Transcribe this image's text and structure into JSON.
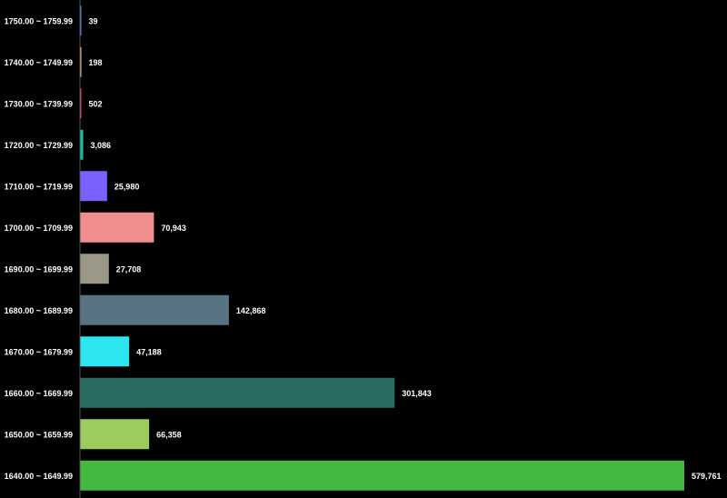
{
  "chart_data": {
    "type": "bar",
    "orientation": "horizontal",
    "categories": [
      "1750.00 ~ 1759.99",
      "1740.00 ~ 1749.99",
      "1730.00 ~ 1739.99",
      "1720.00 ~ 1729.99",
      "1710.00 ~ 1719.99",
      "1700.00 ~ 1709.99",
      "1690.00 ~ 1699.99",
      "1680.00 ~ 1689.99",
      "1670.00 ~ 1679.99",
      "1660.00 ~ 1669.99",
      "1650.00 ~ 1659.99",
      "1640.00 ~ 1649.99"
    ],
    "values": [
      39,
      198,
      502,
      3086,
      25980,
      70943,
      27708,
      142868,
      47188,
      301843,
      66358,
      579761
    ],
    "value_labels": [
      "39",
      "198",
      "502",
      "3,086",
      "25,980",
      "70,943",
      "27,708",
      "142,868",
      "47,188",
      "301,843",
      "66,358",
      "579,761"
    ],
    "colors": [
      "#4a90e2",
      "#f5c26b",
      "#e0526b",
      "#1abc9c",
      "#7b61ff",
      "#f08e8e",
      "#9b9888",
      "#587382",
      "#2de6f0",
      "#2a6b62",
      "#9ccc5e",
      "#45b842"
    ],
    "title": "",
    "xlabel": "",
    "ylabel": "",
    "xlim": [
      0,
      579761
    ],
    "grid": false,
    "legend": "none",
    "background": "#000000",
    "axis_color": "#555555",
    "label_color": "#ffffff"
  }
}
